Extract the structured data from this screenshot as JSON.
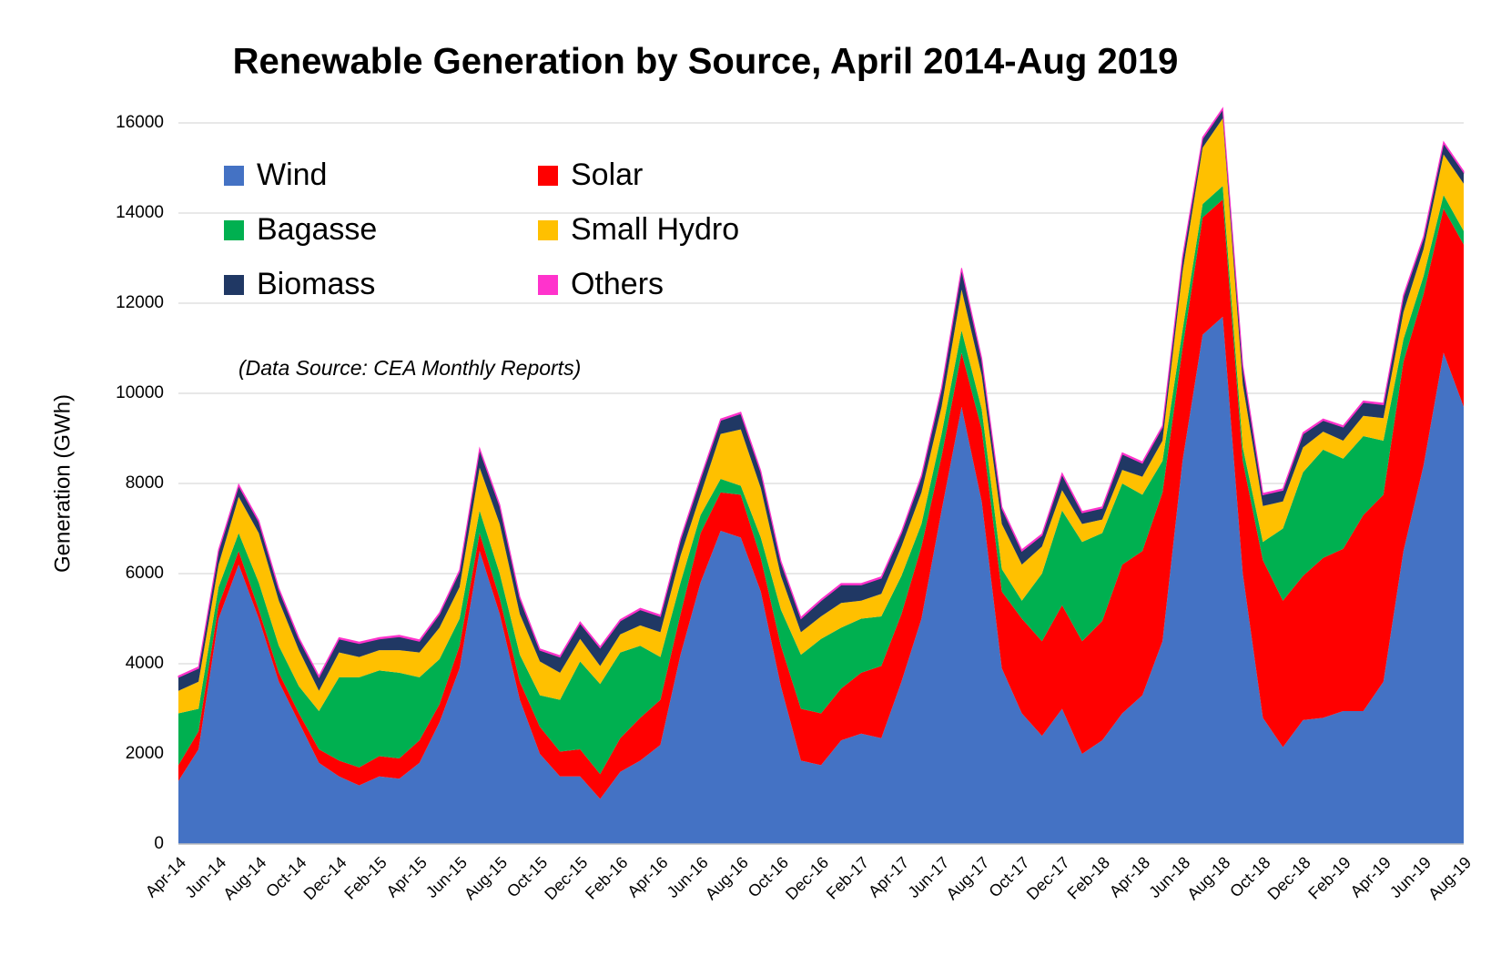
{
  "chart_data": {
    "type": "area",
    "stacked": true,
    "title": "Renewable Generation by Source, April 2014-Aug 2019",
    "annotation": "(Data Source: CEA Monthly Reports)",
    "y_label": "Generation (GWh)",
    "categories": [
      "Apr-14",
      null,
      "Jun-14",
      null,
      "Aug-14",
      null,
      "Oct-14",
      null,
      "Dec-14",
      null,
      "Feb-15",
      null,
      "Apr-15",
      null,
      "Jun-15",
      null,
      "Aug-15",
      null,
      "Oct-15",
      null,
      "Dec-15",
      null,
      "Feb-16",
      null,
      "Apr-16",
      null,
      "Jun-16",
      null,
      "Aug-16",
      null,
      "Oct-16",
      null,
      "Dec-16",
      null,
      "Feb-17",
      null,
      "Apr-17",
      null,
      "Jun-17",
      null,
      "Aug-17",
      null,
      "Oct-17",
      null,
      "Dec-17",
      null,
      "Feb-18",
      null,
      "Apr-18",
      null,
      "Jun-18",
      null,
      "Aug-18",
      null,
      "Oct-18",
      null,
      "Dec-18",
      null,
      "Feb-19",
      null,
      "Apr-19",
      null,
      "Jun-19",
      null,
      "Aug-19"
    ],
    "series": [
      {
        "name": "Wind",
        "color": "#4472c4",
        "values": [
          1400,
          2100,
          5000,
          6200,
          5000,
          3600,
          2700,
          1800,
          1500,
          1300,
          1500,
          1450,
          1800,
          2700,
          3900,
          6500,
          5100,
          3200,
          2000,
          1500,
          1500,
          1000,
          1600,
          1850,
          2200,
          4200,
          5800,
          6950,
          6800,
          5600,
          3500,
          1850,
          1750,
          2300,
          2450,
          2350,
          3600,
          5000,
          7400,
          9700,
          7600,
          3900,
          2900,
          2400,
          3000,
          2000,
          2300,
          2900,
          3300,
          4500,
          8500,
          11300,
          11700,
          6000,
          2800,
          2150,
          2750,
          2800,
          2950,
          2950,
          3600,
          6500,
          8400,
          10900,
          9700
        ]
      },
      {
        "name": "Solar",
        "color": "#ff0000",
        "values": [
          350,
          400,
          300,
          300,
          200,
          200,
          200,
          300,
          350,
          400,
          450,
          450,
          500,
          400,
          500,
          400,
          350,
          400,
          600,
          550,
          600,
          550,
          750,
          950,
          1000,
          900,
          1100,
          850,
          950,
          750,
          900,
          1150,
          1150,
          1150,
          1350,
          1600,
          1500,
          1600,
          1200,
          1200,
          1600,
          1700,
          2100,
          2100,
          2300,
          2500,
          2650,
          3300,
          3200,
          3300,
          2500,
          2600,
          2600,
          2500,
          3500,
          3250,
          3200,
          3550,
          3600,
          4350,
          4150,
          4200,
          3800,
          3200,
          3600
        ]
      },
      {
        "name": "Bagasse",
        "color": "#00b050",
        "values": [
          1150,
          500,
          400,
          400,
          600,
          600,
          600,
          850,
          1850,
          2000,
          1900,
          1900,
          1400,
          1000,
          600,
          500,
          550,
          600,
          700,
          1150,
          1950,
          2000,
          1900,
          1600,
          950,
          700,
          400,
          300,
          200,
          450,
          800,
          1200,
          1650,
          1350,
          1200,
          1100,
          850,
          500,
          500,
          500,
          450,
          500,
          400,
          1500,
          2100,
          2200,
          1950,
          1800,
          1250,
          700,
          400,
          300,
          300,
          300,
          400,
          1600,
          2300,
          2400,
          2000,
          1750,
          1200,
          500,
          400,
          300,
          300
        ]
      },
      {
        "name": "Small Hydro",
        "color": "#ffc000",
        "values": [
          500,
          600,
          500,
          800,
          1100,
          1000,
          800,
          450,
          550,
          450,
          450,
          500,
          550,
          700,
          700,
          950,
          1100,
          900,
          750,
          600,
          500,
          400,
          400,
          450,
          550,
          600,
          450,
          1000,
          1250,
          1100,
          750,
          500,
          500,
          550,
          400,
          500,
          650,
          700,
          600,
          900,
          750,
          1000,
          800,
          600,
          450,
          400,
          300,
          300,
          400,
          450,
          1300,
          1250,
          1500,
          1400,
          800,
          600,
          550,
          400,
          400,
          450,
          500,
          600,
          600,
          900,
          1050
        ]
      },
      {
        "name": "Biomass",
        "color": "#203864",
        "values": [
          300,
          300,
          300,
          250,
          250,
          250,
          250,
          300,
          300,
          300,
          250,
          300,
          250,
          300,
          350,
          400,
          400,
          350,
          250,
          350,
          350,
          400,
          300,
          350,
          350,
          350,
          350,
          300,
          350,
          350,
          300,
          300,
          350,
          400,
          350,
          350,
          300,
          350,
          400,
          450,
          350,
          350,
          300,
          250,
          350,
          250,
          250,
          350,
          300,
          300,
          300,
          200,
          200,
          400,
          250,
          250,
          300,
          250,
          300,
          300,
          300,
          350,
          250,
          250,
          250
        ]
      },
      {
        "name": "Others",
        "color": "#ff33cc",
        "values": [
          30,
          30,
          30,
          30,
          30,
          30,
          30,
          30,
          30,
          30,
          30,
          30,
          30,
          30,
          30,
          30,
          30,
          30,
          30,
          30,
          30,
          30,
          30,
          30,
          30,
          30,
          30,
          30,
          30,
          30,
          30,
          30,
          30,
          30,
          30,
          30,
          30,
          30,
          30,
          30,
          30,
          30,
          30,
          30,
          30,
          30,
          30,
          30,
          30,
          30,
          30,
          30,
          30,
          30,
          30,
          30,
          30,
          30,
          30,
          30,
          30,
          30,
          30,
          30,
          30
        ]
      }
    ],
    "ylim": [
      0,
      16000
    ],
    "yticks": [
      0,
      2000,
      4000,
      6000,
      8000,
      10000,
      12000,
      14000,
      16000
    ],
    "grid": true
  }
}
